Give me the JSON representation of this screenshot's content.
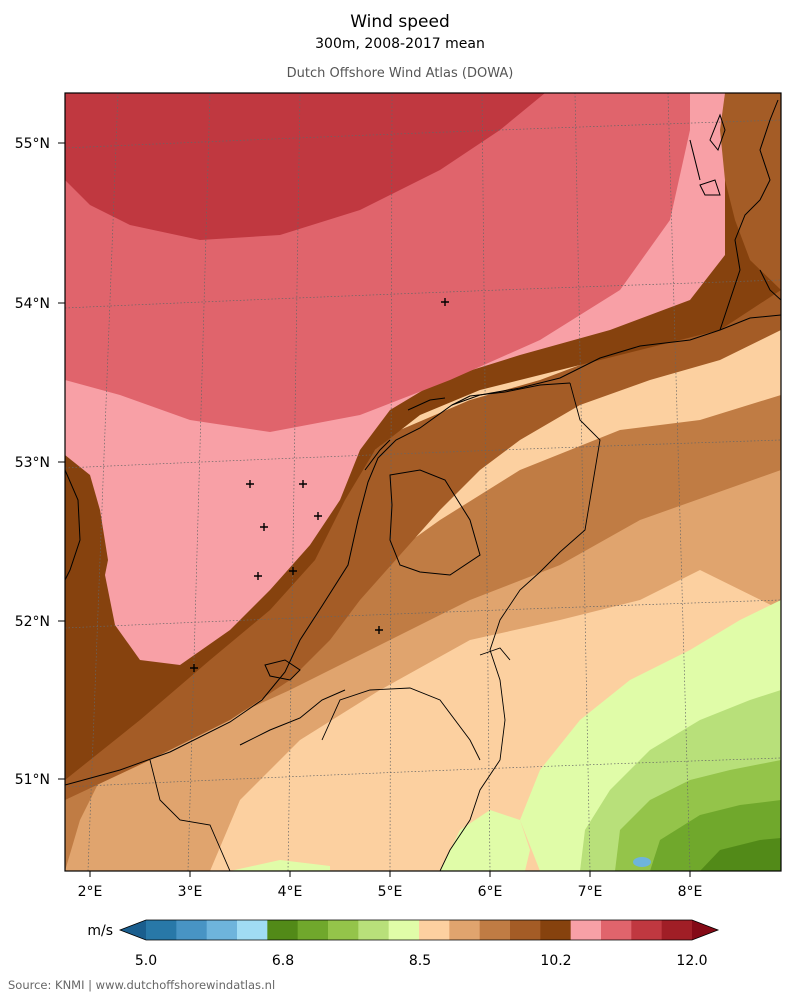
{
  "header": {
    "title": "Wind speed",
    "subtitle": "300m, 2008-2017 mean",
    "source_title": "Dutch Offshore Wind Atlas (DOWA)"
  },
  "footer": {
    "source": "Source: KNMI | www.dutchoffshorewindatlas.nl"
  },
  "map": {
    "region": "North Sea / Netherlands",
    "lat_labels": [
      "51°N",
      "52°N",
      "53°N",
      "54°N",
      "55°N"
    ],
    "lon_labels": [
      "2°E",
      "3°E",
      "4°E",
      "5°E",
      "6°E",
      "7°E",
      "8°E"
    ],
    "marker_count": 9
  },
  "colorbar": {
    "unit": "m/s",
    "tick_labels": [
      "5.0",
      "6.8",
      "8.5",
      "10.2",
      "12.0"
    ],
    "colors": [
      "#1a5e8e",
      "#2878a8",
      "#4894c4",
      "#6eb4dc",
      "#a0dcf4",
      "#528a18",
      "#70a82c",
      "#94c44a",
      "#b8e07a",
      "#e0fca8",
      "#fcd0a0",
      "#e0a46e",
      "#c07c44",
      "#a45c26",
      "#86420e",
      "#f8a0a6",
      "#e0646c",
      "#c03840",
      "#a01e26",
      "#840a16"
    ]
  }
}
